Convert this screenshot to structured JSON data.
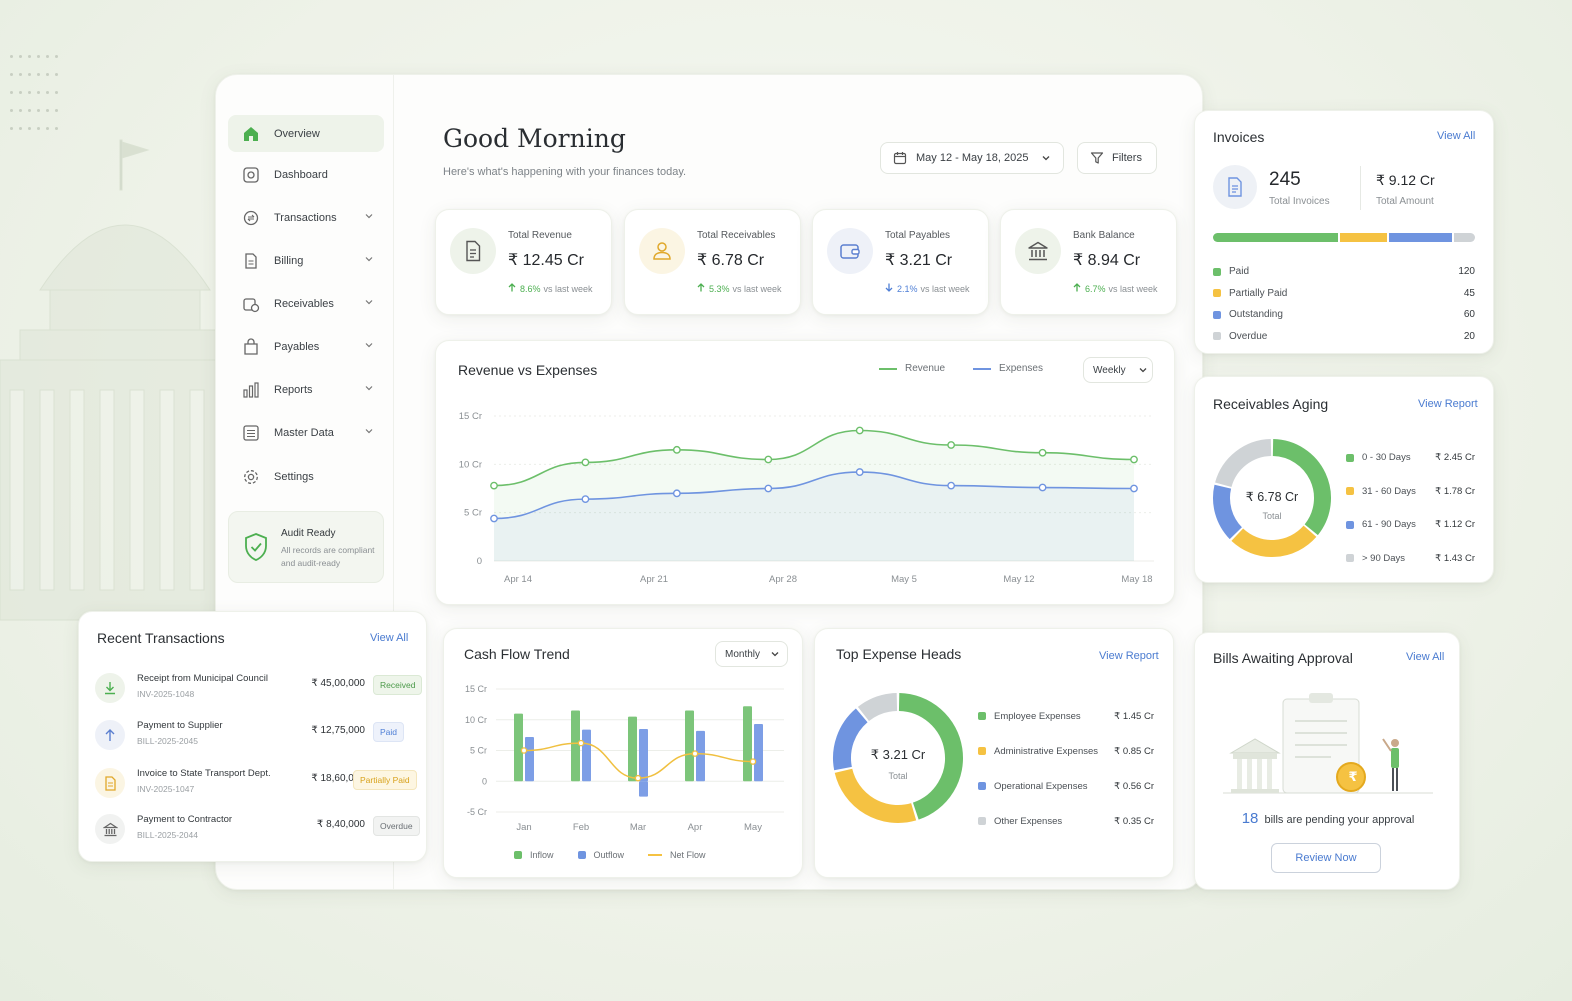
{
  "sidebar": {
    "items": [
      {
        "label": "Overview",
        "icon": "home-icon",
        "active": true,
        "chevron": false
      },
      {
        "label": "Dashboard",
        "icon": "dashboard-icon",
        "chevron": false
      },
      {
        "label": "Transactions",
        "icon": "transactions-icon",
        "chevron": true
      },
      {
        "label": "Billing",
        "icon": "billing-icon",
        "chevron": true
      },
      {
        "label": "Receivables",
        "icon": "receivables-icon",
        "chevron": true
      },
      {
        "label": "Payables",
        "icon": "payables-icon",
        "chevron": true
      },
      {
        "label": "Reports",
        "icon": "reports-icon",
        "chevron": true
      },
      {
        "label": "Master Data",
        "icon": "master-data-icon",
        "chevron": true
      },
      {
        "label": "Settings",
        "icon": "gear-icon",
        "chevron": false
      }
    ],
    "audit": {
      "title": "Audit Ready",
      "line1": "All records are compliant",
      "line2": "and audit-ready"
    }
  },
  "header": {
    "greeting": "Good Morning",
    "subtitle": "Here's what's happening with your finances today.",
    "date_range": "May 12 - May 18, 2025",
    "filters_label": "Filters"
  },
  "kpis": [
    {
      "label": "Total Revenue",
      "value": "₹ 12.45 Cr",
      "change": "8.6%",
      "suffix": "vs last week",
      "direction": "up",
      "color": "#4caf50"
    },
    {
      "label": "Total Receivables",
      "value": "₹ 6.78 Cr",
      "change": "5.3%",
      "suffix": "vs last week",
      "direction": "up",
      "color": "#4caf50"
    },
    {
      "label": "Total Payables",
      "value": "₹ 3.21 Cr",
      "change": "2.1%",
      "suffix": "vs last week",
      "direction": "down",
      "color": "#4f7fd6"
    },
    {
      "label": "Bank Balance",
      "value": "₹ 8.94 Cr",
      "change": "6.7%",
      "suffix": "vs last week",
      "direction": "up",
      "color": "#4caf50"
    }
  ],
  "revenue_chart": {
    "title": "Revenue vs Expenses",
    "legend_revenue": "Revenue",
    "legend_expenses": "Expenses",
    "period": "Weekly",
    "y_ticks": [
      "15 Cr",
      "10 Cr",
      "5 Cr",
      "0"
    ],
    "x_ticks": [
      "Apr 14",
      "Apr 21",
      "Apr 28",
      "May 5",
      "May 12",
      "May 18"
    ]
  },
  "cashflow_chart": {
    "title": "Cash Flow Trend",
    "period": "Monthly",
    "y_ticks": [
      "15 Cr",
      "10 Cr",
      "5 Cr",
      "0",
      "-5 Cr"
    ],
    "x_ticks": [
      "Jan",
      "Feb",
      "Mar",
      "Apr",
      "May"
    ],
    "legend_inflow": "Inflow",
    "legend_outflow": "Outflow",
    "legend_net": "Net Flow"
  },
  "expense_heads": {
    "title": "Top Expense Heads",
    "link": "View Report",
    "center_value": "₹ 3.21 Cr",
    "center_label": "Total",
    "items": [
      {
        "label": "Employee Expenses",
        "value": "₹ 1.45 Cr",
        "color": "#6cbf6a"
      },
      {
        "label": "Administrative Expenses",
        "value": "₹ 0.85 Cr",
        "color": "#f5c242"
      },
      {
        "label": "Operational Expenses",
        "value": "₹ 0.56 Cr",
        "color": "#6f94e0"
      },
      {
        "label": "Other Expenses",
        "value": "₹ 0.35 Cr",
        "color": "#cfd3d6"
      }
    ]
  },
  "invoices": {
    "title": "Invoices",
    "link": "View All",
    "count": "245",
    "count_label": "Total Invoices",
    "amount": "₹ 9.12 Cr",
    "amount_label": "Total Amount",
    "items": [
      {
        "label": "Paid",
        "value": "120",
        "color": "#6cbf6a"
      },
      {
        "label": "Partially Paid",
        "value": "45",
        "color": "#f5c242"
      },
      {
        "label": "Outstanding",
        "value": "60",
        "color": "#6f94e0"
      },
      {
        "label": "Overdue",
        "value": "20",
        "color": "#cfd3d6"
      }
    ]
  },
  "aging": {
    "title": "Receivables Aging",
    "link": "View Report",
    "center_value": "₹ 6.78 Cr",
    "center_label": "Total",
    "items": [
      {
        "label": "0 - 30 Days",
        "value": "₹ 2.45 Cr",
        "color": "#6cbf6a"
      },
      {
        "label": "31 - 60 Days",
        "value": "₹ 1.78 Cr",
        "color": "#f5c242"
      },
      {
        "label": "61 - 90 Days",
        "value": "₹ 1.12 Cr",
        "color": "#6f94e0"
      },
      {
        "label": "> 90 Days",
        "value": "₹ 1.43 Cr",
        "color": "#cfd3d6"
      }
    ]
  },
  "recent": {
    "title": "Recent Transactions",
    "link": "View All",
    "rows": [
      {
        "name": "Receipt from Municipal Council",
        "id": "INV-2025-1048",
        "amount": "₹ 45,00,000",
        "status": "Received",
        "icon": "download-arrow-icon"
      },
      {
        "name": "Payment to Supplier",
        "id": "BILL-2025-2045",
        "amount": "₹ 12,75,000",
        "status": "Paid",
        "icon": "upload-arrow-icon"
      },
      {
        "name": "Invoice to State Transport Dept.",
        "id": "INV-2025-1047",
        "amount": "₹ 18,60,000",
        "status": "Partially Paid",
        "icon": "document-icon"
      },
      {
        "name": "Payment to Contractor",
        "id": "BILL-2025-2044",
        "amount": "₹ 8,40,000",
        "status": "Overdue",
        "icon": "bank-icon"
      }
    ]
  },
  "bills": {
    "title": "Bills Awaiting Approval",
    "link": "View All",
    "count": "18",
    "text": "bills are pending your approval",
    "button": "Review Now",
    "coin_symbol": "₹"
  },
  "chart_data": [
    {
      "type": "line",
      "title": "Revenue vs Expenses",
      "x": [
        "Apr 14",
        "Apr 17",
        "Apr 21",
        "Apr 24",
        "Apr 28",
        "May 5",
        "May 12",
        "May 18"
      ],
      "series": [
        {
          "name": "Revenue",
          "values": [
            7.8,
            10.2,
            11.5,
            10.5,
            13.5,
            12.0,
            11.2,
            10.5
          ]
        },
        {
          "name": "Expenses",
          "values": [
            4.4,
            6.4,
            7.0,
            7.5,
            9.2,
            7.8,
            7.6,
            7.5
          ]
        }
      ],
      "ylim": [
        0,
        15
      ]
    },
    {
      "type": "bar",
      "title": "Cash Flow Trend",
      "categories": [
        "Jan",
        "Feb",
        "Mar",
        "Apr",
        "May"
      ],
      "series": [
        {
          "name": "Inflow",
          "values": [
            11,
            11.5,
            10.5,
            11.5,
            12.2
          ]
        },
        {
          "name": "Outflow",
          "values": [
            7.2,
            8.4,
            8.5,
            8.2,
            9.3
          ]
        },
        {
          "name": "Net Flow",
          "values": [
            5.0,
            6.2,
            0.5,
            4.5,
            3.2
          ]
        }
      ],
      "ylim": [
        -5,
        15
      ]
    },
    {
      "type": "pie",
      "title": "Top Expense Heads",
      "categories": [
        "Employee Expenses",
        "Administrative Expenses",
        "Operational Expenses",
        "Other Expenses"
      ],
      "values": [
        1.45,
        0.85,
        0.56,
        0.35
      ]
    },
    {
      "type": "pie",
      "title": "Receivables Aging",
      "categories": [
        "0 - 30 Days",
        "31 - 60 Days",
        "61 - 90 Days",
        "> 90 Days"
      ],
      "values": [
        2.45,
        1.78,
        1.12,
        1.43
      ]
    },
    {
      "type": "bar",
      "title": "Invoices",
      "categories": [
        "Paid",
        "Partially Paid",
        "Outstanding",
        "Overdue"
      ],
      "values": [
        120,
        45,
        60,
        20
      ]
    }
  ]
}
